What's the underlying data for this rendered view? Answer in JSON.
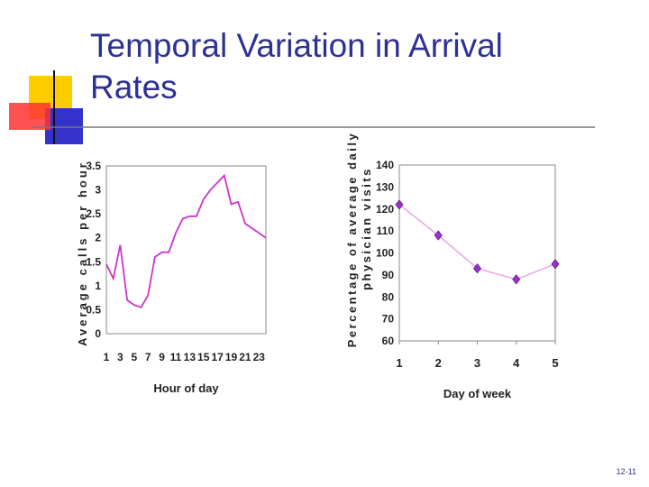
{
  "slide": {
    "title": "Temporal Variation in Arrival Rates",
    "page_number": "12-11"
  },
  "colors": {
    "title": "#2e3192",
    "line": "#cc33cc",
    "marker": "#9b30d0",
    "accent_yellow": "#ffcc00",
    "accent_red": "#ff3333",
    "accent_blue": "#3333cc"
  },
  "chart_data": [
    {
      "type": "line",
      "xlabel": "Hour of day",
      "ylabel": "Average calls per hour",
      "x_ticks": [
        "1",
        "3",
        "5",
        "7",
        "9",
        "11",
        "13",
        "15",
        "17",
        "19",
        "21",
        "23"
      ],
      "y_ticks": [
        "0",
        "0.5",
        "1",
        "1.5",
        "2",
        "2.5",
        "3",
        "3.5"
      ],
      "ylim": [
        0,
        3.5
      ],
      "xlim": [
        1,
        24
      ],
      "x": [
        1,
        2,
        3,
        4,
        5,
        6,
        7,
        8,
        9,
        10,
        11,
        12,
        13,
        14,
        15,
        16,
        17,
        18,
        19,
        20,
        21,
        22,
        23,
        24
      ],
      "values": [
        1.45,
        1.15,
        1.85,
        0.7,
        0.6,
        0.55,
        0.8,
        1.6,
        1.7,
        1.7,
        2.1,
        2.4,
        2.45,
        2.45,
        2.8,
        3.0,
        3.15,
        3.3,
        2.7,
        2.75,
        2.3,
        2.2,
        2.1,
        2.0
      ]
    },
    {
      "type": "line",
      "xlabel": "Day of week",
      "ylabel_lines": [
        "Percentage of average daily",
        "physician visits"
      ],
      "x_ticks": [
        "1",
        "2",
        "3",
        "4",
        "5"
      ],
      "y_ticks": [
        "60",
        "70",
        "80",
        "90",
        "100",
        "110",
        "120",
        "130",
        "140"
      ],
      "ylim": [
        60,
        140
      ],
      "x": [
        1,
        2,
        3,
        4,
        5
      ],
      "values": [
        122,
        108,
        93,
        88,
        95
      ]
    }
  ]
}
